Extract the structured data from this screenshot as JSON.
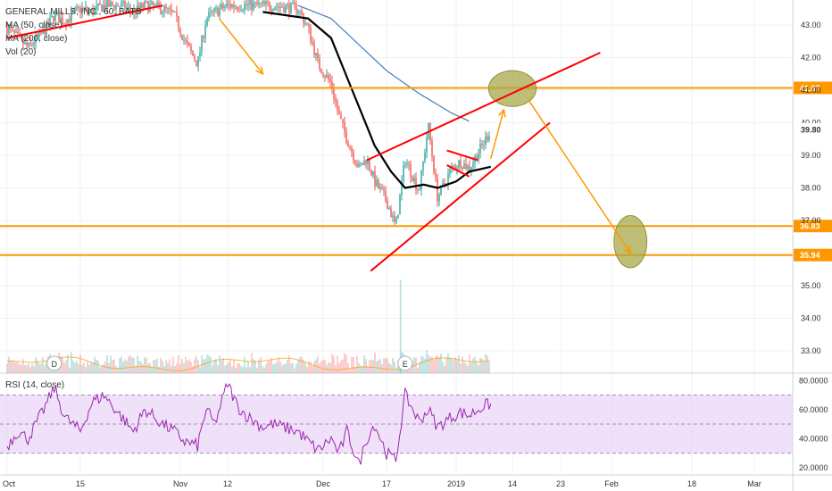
{
  "colors": {
    "up": "#26a69a",
    "down": "#ef5350",
    "ma50": "#000000",
    "ma200": "#4a7fb5",
    "orange": "#ff9800",
    "trend": "#ff0000",
    "ellipse_fill": "#a8a84a",
    "rsi_line": "#9c27b0",
    "rsi_band": "#e9d7f5"
  },
  "legend": {
    "title": "GENERAL MILLS, INC., 60, BATS",
    "ma50": "MA (50, close)",
    "ma200": "MA (200, close)",
    "vol": "Vol (20)"
  },
  "rsi_label": "RSI (14, close)",
  "chart_data": [
    {
      "type": "candlestick",
      "title": "GENERAL MILLS, INC., 60, BATS",
      "x_ticks": [
        "Oct",
        "15",
        "Nov",
        "12",
        "Dec",
        "17",
        "2019",
        "14",
        "23",
        "Feb",
        "18",
        "Mar"
      ],
      "y_ticks": [
        "43.00",
        "42.00",
        "41.00",
        "40.00",
        "39.00",
        "38.00",
        "37.00",
        "35.00",
        "34.00",
        "33.00"
      ],
      "ylim": [
        32.5,
        43.5
      ],
      "price_levels": [
        {
          "label": "41.07",
          "value": 41.07
        },
        {
          "label": "36.83",
          "value": 36.83
        },
        {
          "label": "35.94",
          "value": 35.94
        }
      ],
      "last_price": {
        "label": "39.80",
        "value": 39.8
      },
      "close_path": [
        {
          "date": "2018-10-01",
          "close": 42.9
        },
        {
          "date": "2018-10-03",
          "close": 42.6
        },
        {
          "date": "2018-10-05",
          "close": 42.3
        },
        {
          "date": "2018-10-08",
          "close": 42.8
        },
        {
          "date": "2018-10-10",
          "close": 43.3
        },
        {
          "date": "2018-10-12",
          "close": 43.1
        },
        {
          "date": "2018-10-15",
          "close": 43.5
        },
        {
          "date": "2018-10-17",
          "close": 43.4
        },
        {
          "date": "2018-10-19",
          "close": 43.6
        },
        {
          "date": "2018-10-22",
          "close": 43.6
        },
        {
          "date": "2018-10-24",
          "close": 43.4
        },
        {
          "date": "2018-10-26",
          "close": 43.6
        },
        {
          "date": "2018-10-29",
          "close": 43.5
        },
        {
          "date": "2018-10-31",
          "close": 43.3
        },
        {
          "date": "2018-11-02",
          "close": 42.5
        },
        {
          "date": "2018-11-05",
          "close": 41.8
        },
        {
          "date": "2018-11-07",
          "close": 43.2
        },
        {
          "date": "2018-11-09",
          "close": 43.4
        },
        {
          "date": "2018-11-12",
          "close": 43.6
        },
        {
          "date": "2018-11-14",
          "close": 43.6
        },
        {
          "date": "2018-11-16",
          "close": 43.6
        },
        {
          "date": "2018-11-19",
          "close": 43.6
        },
        {
          "date": "2018-11-21",
          "close": 43.6
        },
        {
          "date": "2018-11-26",
          "close": 43.5
        },
        {
          "date": "2018-11-28",
          "close": 42.9
        },
        {
          "date": "2018-11-30",
          "close": 41.8
        },
        {
          "date": "2018-12-03",
          "close": 41.2
        },
        {
          "date": "2018-12-05",
          "close": 40.2
        },
        {
          "date": "2018-12-07",
          "close": 39.5
        },
        {
          "date": "2018-12-10",
          "close": 38.6
        },
        {
          "date": "2018-12-12",
          "close": 38.9
        },
        {
          "date": "2018-12-14",
          "close": 38.2
        },
        {
          "date": "2018-12-17",
          "close": 37.6
        },
        {
          "date": "2018-12-19",
          "close": 36.8
        },
        {
          "date": "2018-12-21",
          "close": 38.9
        },
        {
          "date": "2018-12-24",
          "close": 37.9
        },
        {
          "date": "2018-12-26",
          "close": 39.9
        },
        {
          "date": "2018-12-28",
          "close": 37.7
        },
        {
          "date": "2018-12-31",
          "close": 38.6
        },
        {
          "date": "2019-01-02",
          "close": 38.8
        },
        {
          "date": "2019-01-04",
          "close": 38.6
        },
        {
          "date": "2019-01-07",
          "close": 39.3
        },
        {
          "date": "2019-01-09",
          "close": 39.8
        }
      ],
      "ma50_path": [
        {
          "date": "2018-11-19",
          "value": 43.4
        },
        {
          "date": "2018-11-28",
          "value": 43.2
        },
        {
          "date": "2018-12-03",
          "value": 42.6
        },
        {
          "date": "2018-12-07",
          "value": 41.4
        },
        {
          "date": "2018-12-11",
          "value": 40.2
        },
        {
          "date": "2018-12-14",
          "value": 39.3
        },
        {
          "date": "2018-12-18",
          "value": 38.5
        },
        {
          "date": "2018-12-21",
          "value": 38.0
        },
        {
          "date": "2018-12-25",
          "value": 38.1
        },
        {
          "date": "2018-12-28",
          "value": 38.0
        },
        {
          "date": "2019-01-01",
          "value": 38.2
        },
        {
          "date": "2019-01-04",
          "value": 38.5
        },
        {
          "date": "2019-01-09",
          "value": 38.65
        }
      ],
      "ma200_path": [
        {
          "date": "2018-11-26",
          "value": 43.6
        },
        {
          "date": "2018-12-03",
          "value": 43.2
        },
        {
          "date": "2018-12-10",
          "value": 42.4
        },
        {
          "date": "2018-12-17",
          "value": 41.6
        },
        {
          "date": "2018-12-24",
          "value": 40.9
        },
        {
          "date": "2018-12-31",
          "value": 40.3
        },
        {
          "date": "2019-01-04",
          "value": 40.05
        }
      ],
      "drawings": {
        "trend_lines": [
          {
            "from": {
              "date": "2018-10-01",
              "price": 42.6
            },
            "to": {
              "date": "2018-10-29",
              "price": 43.6
            }
          },
          {
            "from": {
              "date": "2018-12-12",
              "price": 38.85
            },
            "to": {
              "date": "2019-01-30",
              "price": 42.15
            }
          },
          {
            "from": {
              "date": "2018-12-13",
              "price": 35.45
            },
            "to": {
              "date": "2019-01-21",
              "price": 40.0
            }
          },
          {
            "from": {
              "date": "2018-12-30",
              "price": 39.15
            },
            "to": {
              "date": "2019-01-06",
              "price": 38.85
            }
          },
          {
            "from": {
              "date": "2018-12-30",
              "price": 38.7
            },
            "to": {
              "date": "2019-01-04",
              "price": 38.35
            }
          }
        ],
        "arrows": [
          {
            "from": {
              "date": "2018-11-10",
              "price": 43.2
            },
            "to": {
              "date": "2018-11-19",
              "price": 41.5
            }
          },
          {
            "from": {
              "date": "2019-01-09",
              "price": 38.9
            },
            "to": {
              "date": "2019-01-12",
              "price": 40.4
            }
          },
          {
            "from": {
              "date": "2019-01-17",
              "price": 40.7
            },
            "to": {
              "date": "2019-02-05",
              "price": 36.0
            }
          }
        ],
        "ellipses": [
          {
            "center": {
              "date": "2019-01-14",
              "price": 41.05
            },
            "half_width_days": 5.5,
            "half_height_price": 0.55
          },
          {
            "center": {
              "date": "2019-02-05",
              "price": 36.35
            },
            "half_width_days": 3.8,
            "half_height_price": 0.8
          }
        ]
      },
      "volume": {
        "event_markers": [
          "D",
          "E"
        ]
      }
    },
    {
      "type": "line",
      "title": "RSI (14, close)",
      "y_ticks": [
        "80.0000",
        "60.0000",
        "40.0000",
        "20.0000"
      ],
      "ylim": [
        15,
        82
      ],
      "bands": {
        "upper": 70,
        "lower": 30
      },
      "series": [
        {
          "points": [
            {
              "date": "2018-10-01",
              "value": 35
            },
            {
              "date": "2018-10-03",
              "value": 45
            },
            {
              "date": "2018-10-05",
              "value": 40
            },
            {
              "date": "2018-10-08",
              "value": 60
            },
            {
              "date": "2018-10-10",
              "value": 75
            },
            {
              "date": "2018-10-12",
              "value": 55
            },
            {
              "date": "2018-10-15",
              "value": 45
            },
            {
              "date": "2018-10-17",
              "value": 65
            },
            {
              "date": "2018-10-19",
              "value": 70
            },
            {
              "date": "2018-10-22",
              "value": 55
            },
            {
              "date": "2018-10-24",
              "value": 45
            },
            {
              "date": "2018-10-26",
              "value": 60
            },
            {
              "date": "2018-10-29",
              "value": 50
            },
            {
              "date": "2018-10-31",
              "value": 45
            },
            {
              "date": "2018-11-02",
              "value": 38
            },
            {
              "date": "2018-11-05",
              "value": 35
            },
            {
              "date": "2018-11-07",
              "value": 60
            },
            {
              "date": "2018-11-09",
              "value": 50
            },
            {
              "date": "2018-11-12",
              "value": 78
            },
            {
              "date": "2018-11-14",
              "value": 62
            },
            {
              "date": "2018-11-16",
              "value": 55
            },
            {
              "date": "2018-11-19",
              "value": 48
            },
            {
              "date": "2018-11-21",
              "value": 50
            },
            {
              "date": "2018-11-26",
              "value": 45
            },
            {
              "date": "2018-11-28",
              "value": 38
            },
            {
              "date": "2018-11-30",
              "value": 32
            },
            {
              "date": "2018-12-03",
              "value": 40
            },
            {
              "date": "2018-12-05",
              "value": 30
            },
            {
              "date": "2018-12-07",
              "value": 45
            },
            {
              "date": "2018-12-10",
              "value": 22
            },
            {
              "date": "2018-12-12",
              "value": 40
            },
            {
              "date": "2018-12-14",
              "value": 50
            },
            {
              "date": "2018-12-17",
              "value": 30
            },
            {
              "date": "2018-12-19",
              "value": 25
            },
            {
              "date": "2018-12-21",
              "value": 70
            },
            {
              "date": "2018-12-24",
              "value": 52
            },
            {
              "date": "2018-12-26",
              "value": 60
            },
            {
              "date": "2018-12-28",
              "value": 48
            },
            {
              "date": "2018-12-31",
              "value": 55
            },
            {
              "date": "2019-01-02",
              "value": 58
            },
            {
              "date": "2019-01-04",
              "value": 56
            },
            {
              "date": "2019-01-07",
              "value": 62
            },
            {
              "date": "2019-01-09",
              "value": 64
            }
          ]
        }
      ]
    }
  ]
}
